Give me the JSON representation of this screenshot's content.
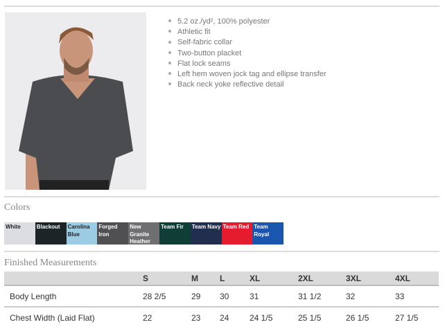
{
  "product": {
    "photo_alt": "Man wearing polo shirt"
  },
  "features": [
    "5.2 oz./yd², 100% polyester",
    "Athletic fit",
    "Self-fabric collar",
    "Two-button placket",
    "Flat lock seams",
    "Left hem woven jock tag and ellipse transfer",
    "Back neck yoke reflective detail"
  ],
  "colors_title": "Colors",
  "colors": [
    {
      "name": "White",
      "hex": "#dcdde3",
      "text": "#222"
    },
    {
      "name": "Blackout",
      "hex": "#1d2428",
      "text": "#fff"
    },
    {
      "name": "Carolina Blue",
      "hex": "#9ccbe4",
      "text": "#222"
    },
    {
      "name": "Forged Iron",
      "hex": "#505052",
      "text": "#fff"
    },
    {
      "name": "New Granite Heather",
      "hex": "#6f6f72",
      "text": "#fff"
    },
    {
      "name": "Team Fir",
      "hex": "#0e3e36",
      "text": "#fff"
    },
    {
      "name": "Team Navy",
      "hex": "#222e4e",
      "text": "#fff"
    },
    {
      "name": "Team Red",
      "hex": "#e41c2e",
      "text": "#fff"
    },
    {
      "name": "Team Royal",
      "hex": "#1a56ad",
      "text": "#fff"
    }
  ],
  "measurements": {
    "title": "Finished Measurements",
    "sizes": [
      "S",
      "M",
      "L",
      "XL",
      "2XL",
      "3XL",
      "4XL"
    ],
    "rows": [
      {
        "label": "Body Length",
        "values": [
          "28 2/5",
          "29",
          "30",
          "31",
          "31 1/2",
          "32",
          "33"
        ]
      },
      {
        "label": "Chest Width (Laid Flat)",
        "values": [
          "22",
          "23",
          "24",
          "24 1/5",
          "25 1/5",
          "26 1/5",
          "27 1/5"
        ]
      }
    ]
  }
}
